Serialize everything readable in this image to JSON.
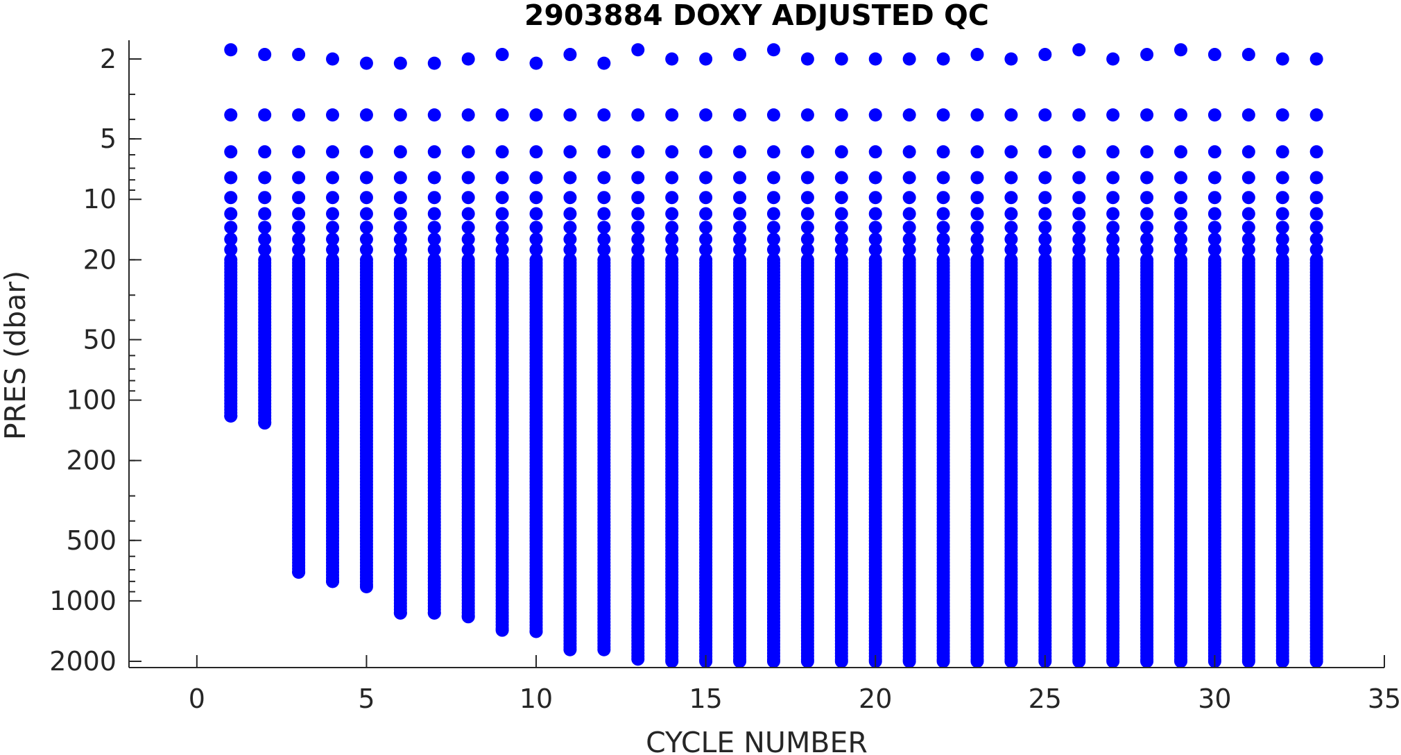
{
  "chart_data": {
    "type": "scatter",
    "title": "2903884  DOXY ADJUSTED QC",
    "xlabel": "CYCLE NUMBER",
    "ylabel": "PRES (dbar)",
    "xlim": [
      -2,
      35
    ],
    "ylim": [
      1.5,
      2100
    ],
    "y_scale": "log",
    "y_reversed": true,
    "grid": false,
    "legend": "none",
    "marker_color": "#0000ff",
    "x_ticks": [
      0,
      5,
      10,
      15,
      20,
      25,
      30,
      35
    ],
    "x_tick_labels": [
      "0",
      "5",
      "10",
      "15",
      "20",
      "25",
      "30",
      "35"
    ],
    "y_ticks": [
      2,
      5,
      10,
      20,
      50,
      100,
      200,
      500,
      1000,
      2000
    ],
    "y_tick_labels": [
      "2",
      "5",
      "10",
      "20",
      "50",
      "100",
      "200",
      "500",
      "1000",
      "2000"
    ],
    "series": [
      {
        "cycles": [
          1,
          2,
          3,
          4,
          5,
          6,
          7,
          8,
          9,
          10,
          11,
          12,
          13,
          14,
          15,
          16,
          17,
          18,
          19,
          20,
          21,
          22,
          23,
          24,
          25,
          26,
          27,
          28,
          29,
          30,
          31,
          32,
          33
        ],
        "shallowest_pres": [
          1.8,
          1.9,
          1.9,
          2.0,
          2.1,
          2.1,
          2.1,
          2.0,
          1.9,
          2.1,
          1.9,
          2.1,
          1.8,
          2.0,
          2.0,
          1.9,
          1.8,
          2.0,
          2.0,
          2.0,
          2.0,
          2.0,
          1.9,
          2.0,
          1.9,
          1.8,
          2.0,
          1.9,
          1.8,
          1.9,
          1.9,
          2.0,
          2.0
        ],
        "deepest_pres": [
          120,
          130,
          720,
          800,
          850,
          1150,
          1150,
          1200,
          1400,
          1420,
          1750,
          1750,
          1950,
          2000,
          2000,
          2000,
          2000,
          2000,
          2000,
          2000,
          2000,
          2000,
          2000,
          2000,
          2000,
          2000,
          2000,
          2000,
          2000,
          2000,
          2000,
          2000,
          2000
        ],
        "upper_levels_pres": [
          3.8,
          5.8,
          7.8,
          9.8,
          11.8,
          13.8,
          15.8,
          17.8
        ]
      }
    ]
  }
}
